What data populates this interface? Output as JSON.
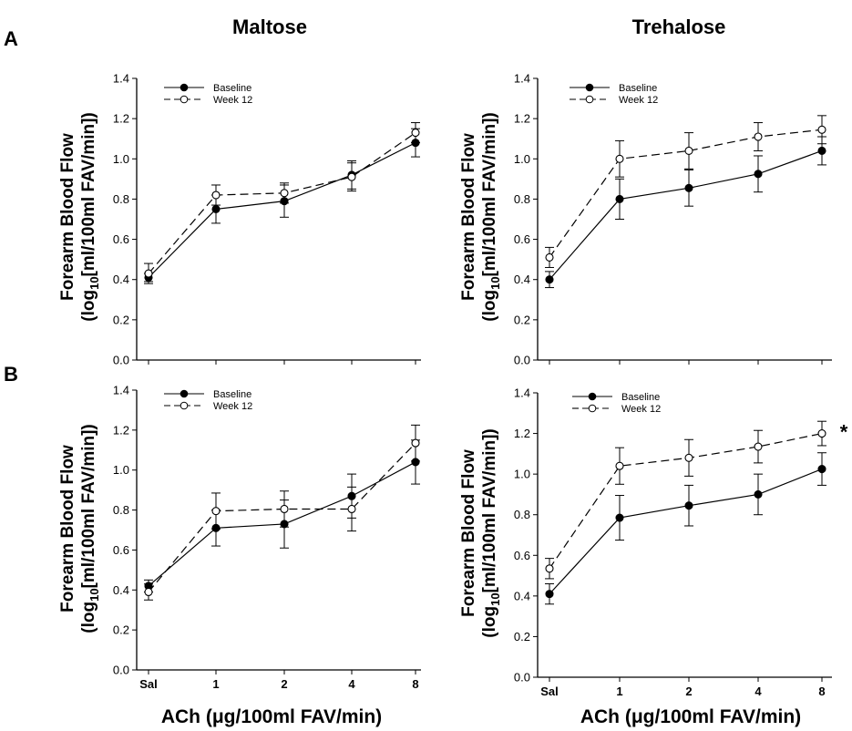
{
  "labels": {
    "col_titles": [
      "Maltose",
      "Trehalose"
    ],
    "row_labels": [
      "A",
      "B"
    ],
    "ylabel_line1": "Forearm Blood Flow",
    "ylabel_line2_pre": "(log",
    "ylabel_line2_sub": "10",
    "ylabel_line2_post": "[ml/100ml FAV/min])",
    "xlabel": "ACh (μg/100ml FAV/min)"
  },
  "chart_data": [
    {
      "type": "line",
      "panel": "A-Maltose",
      "x": [
        "Sal",
        "1",
        "2",
        "4",
        "8"
      ],
      "x_tick_labels_shown": false,
      "ylim": [
        0,
        1.4
      ],
      "y_ticks": [
        "0.0",
        "0.2",
        "0.4",
        "0.6",
        "0.8",
        "1.0",
        "1.2",
        "1.4"
      ],
      "legend": "top-left",
      "series": [
        {
          "name": "Baseline",
          "marker": "filled",
          "line": "solid",
          "values": [
            0.41,
            0.75,
            0.79,
            0.92,
            1.08
          ],
          "err": [
            0.02,
            0.07,
            0.08,
            0.07,
            0.07
          ]
        },
        {
          "name": "Week 12",
          "marker": "open",
          "line": "dashed",
          "values": [
            0.43,
            0.82,
            0.83,
            0.91,
            1.13
          ],
          "err": [
            0.05,
            0.05,
            0.05,
            0.07,
            0.05
          ]
        }
      ],
      "significance": ""
    },
    {
      "type": "line",
      "panel": "A-Trehalose",
      "x": [
        "Sal",
        "1",
        "2",
        "4",
        "8"
      ],
      "x_tick_labels_shown": false,
      "ylim": [
        0,
        1.4
      ],
      "y_ticks": [
        "0.0",
        "0.2",
        "0.4",
        "0.6",
        "0.8",
        "1.0",
        "1.2",
        "1.4"
      ],
      "legend": "top-left",
      "series": [
        {
          "name": "Baseline",
          "marker": "filled",
          "line": "solid",
          "values": [
            0.4,
            0.8,
            0.855,
            0.925,
            1.04
          ],
          "err": [
            0.04,
            0.1,
            0.09,
            0.09,
            0.07
          ]
        },
        {
          "name": "Week 12",
          "marker": "open",
          "line": "dashed",
          "values": [
            0.51,
            1.0,
            1.04,
            1.11,
            1.145
          ],
          "err": [
            0.05,
            0.09,
            0.09,
            0.07,
            0.07
          ]
        }
      ],
      "significance": ""
    },
    {
      "type": "line",
      "panel": "B-Maltose",
      "x": [
        "Sal",
        "1",
        "2",
        "4",
        "8"
      ],
      "x_tick_labels_shown": true,
      "ylim": [
        0,
        1.4
      ],
      "y_ticks": [
        "0.0",
        "0.2",
        "0.4",
        "0.6",
        "0.8",
        "1.0",
        "1.2",
        "1.4"
      ],
      "legend": "top-left",
      "series": [
        {
          "name": "Baseline",
          "marker": "filled",
          "line": "solid",
          "values": [
            0.42,
            0.71,
            0.73,
            0.87,
            1.04
          ],
          "err": [
            0.03,
            0.09,
            0.12,
            0.11,
            0.11
          ]
        },
        {
          "name": "Week 12",
          "marker": "open",
          "line": "dashed",
          "values": [
            0.39,
            0.795,
            0.805,
            0.805,
            1.135
          ],
          "err": [
            0.04,
            0.09,
            0.09,
            0.11,
            0.09
          ]
        }
      ],
      "significance": ""
    },
    {
      "type": "line",
      "panel": "B-Trehalose",
      "x": [
        "Sal",
        "1",
        "2",
        "4",
        "8"
      ],
      "x_tick_labels_shown": true,
      "ylim": [
        0,
        1.4
      ],
      "y_ticks": [
        "0.0",
        "0.2",
        "0.4",
        "0.6",
        "0.8",
        "1.0",
        "1.2",
        "1.4"
      ],
      "legend": "top-left",
      "series": [
        {
          "name": "Baseline",
          "marker": "filled",
          "line": "solid",
          "values": [
            0.41,
            0.785,
            0.845,
            0.9,
            1.025
          ],
          "err": [
            0.05,
            0.11,
            0.1,
            0.1,
            0.08
          ]
        },
        {
          "name": "Week 12",
          "marker": "open",
          "line": "dashed",
          "values": [
            0.535,
            1.04,
            1.08,
            1.135,
            1.2
          ],
          "err": [
            0.05,
            0.09,
            0.09,
            0.08,
            0.06
          ]
        }
      ],
      "significance": "*"
    }
  ]
}
